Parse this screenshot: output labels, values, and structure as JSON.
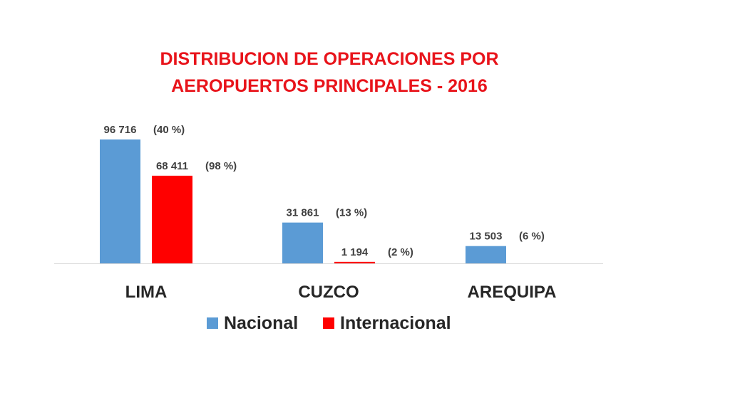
{
  "chart_data": {
    "type": "bar",
    "title_lines": [
      "DISTRIBUCION DE OPERACIONES POR",
      "AEROPUERTOS PRINCIPALES - 2016"
    ],
    "categories": [
      "LIMA",
      "CUZCO",
      "AREQUIPA"
    ],
    "ylim": [
      0,
      100000
    ],
    "grid": false,
    "legend_position": "bottom",
    "series": [
      {
        "name": "Nacional",
        "color": "#5b9bd5",
        "values": [
          96716,
          31861,
          13503
        ],
        "labels": [
          "96 716",
          "31 861",
          "13 503"
        ],
        "percent_labels": [
          "(40 %)",
          "(13 %)",
          "(6 %)"
        ]
      },
      {
        "name": "Internacional",
        "color": "#ff0000",
        "values": [
          68411,
          1194,
          null
        ],
        "labels": [
          "68 411",
          "1 194",
          null
        ],
        "percent_labels": [
          "(98 %)",
          "(2 %)",
          null
        ]
      }
    ],
    "title_color": "#e8141b"
  }
}
